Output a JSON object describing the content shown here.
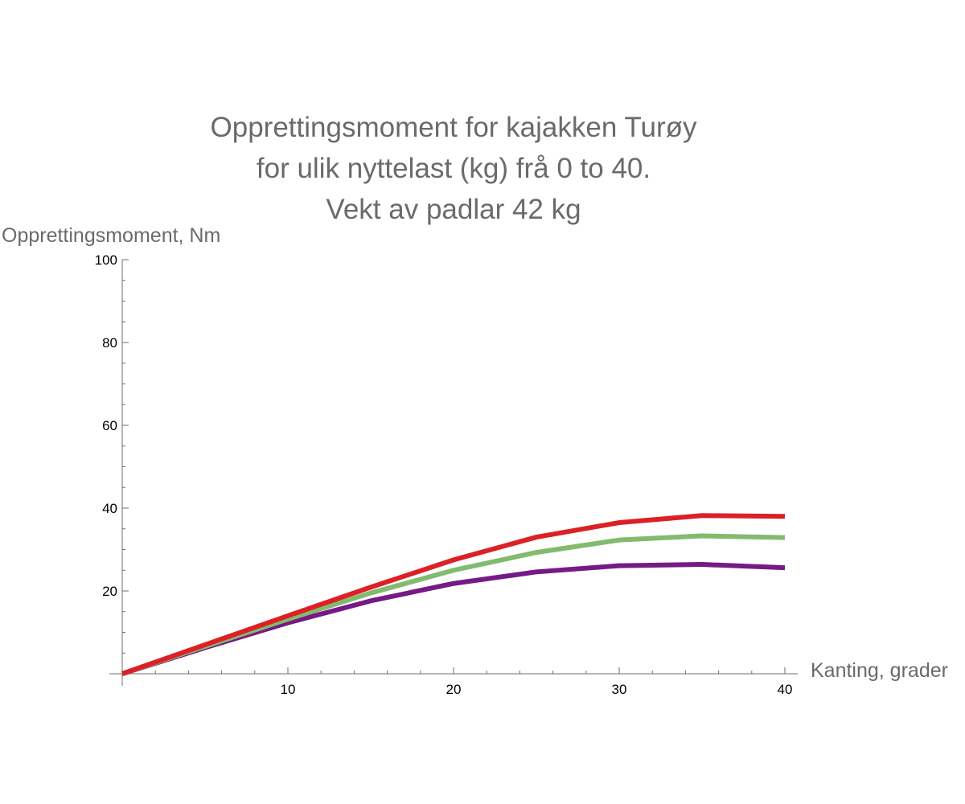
{
  "chart_data": {
    "type": "line",
    "title": "Opprettingsmoment for kajakken Turøy for ulik nyttelast (kg) frå 0 to 40. Vekt av padlar 42 kg",
    "title_lines": [
      "Opprettingsmoment for kajakken Turøy",
      "for ulik nyttelast (kg) frå 0 to 40.",
      "Vekt av padlar 42 kg"
    ],
    "xlabel": "Kanting, grader",
    "ylabel": "Opprettingsmoment, Nm",
    "xlim": [
      0,
      40
    ],
    "ylim": [
      0,
      100
    ],
    "x_ticks": [
      10,
      20,
      30,
      40
    ],
    "y_ticks": [
      20,
      40,
      60,
      80,
      100
    ],
    "grid": false,
    "legend": "none",
    "x": [
      0,
      5,
      10,
      15,
      20,
      25,
      30,
      35,
      40
    ],
    "series": [
      {
        "name": "red",
        "color": "#dc2126",
        "values": [
          0,
          7.0,
          14.0,
          20.9,
          27.5,
          33.0,
          36.5,
          38.2,
          38.0
        ]
      },
      {
        "name": "green",
        "color": "#82bb6e",
        "values": [
          0,
          6.6,
          13.2,
          19.5,
          25.0,
          29.3,
          32.3,
          33.3,
          32.9
        ]
      },
      {
        "name": "purple",
        "color": "#761a86",
        "values": [
          0,
          6.3,
          12.3,
          17.6,
          21.8,
          24.6,
          26.1,
          26.4,
          25.6
        ]
      }
    ]
  }
}
